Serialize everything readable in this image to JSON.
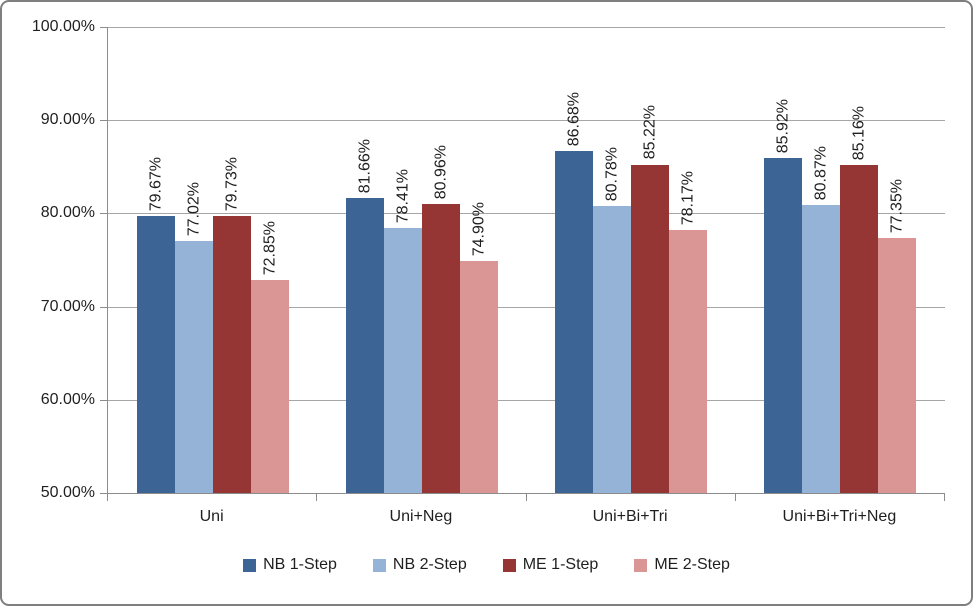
{
  "chart_data": {
    "type": "bar",
    "title": "",
    "xlabel": "",
    "ylabel": "",
    "categories": [
      "Uni",
      "Uni+Neg",
      "Uni+Bi+Tri",
      "Uni+Bi+Tri+Neg"
    ],
    "series": [
      {
        "name": "NB 1-Step",
        "color": "#3C6596",
        "values": [
          79.67,
          81.66,
          86.68,
          85.92
        ],
        "labels": [
          "79.67%",
          "81.66%",
          "86.68%",
          "85.92%"
        ]
      },
      {
        "name": "NB 2-Step",
        "color": "#95B3D7",
        "values": [
          77.02,
          78.41,
          80.78,
          80.87
        ],
        "labels": [
          "77.02%",
          "78.41%",
          "80.78%",
          "80.87%"
        ]
      },
      {
        "name": "ME 1-Step",
        "color": "#963634",
        "values": [
          79.73,
          80.96,
          85.22,
          85.16
        ],
        "labels": [
          "79.73%",
          "80.96%",
          "85.22%",
          "85.16%"
        ]
      },
      {
        "name": "ME 2-Step",
        "color": "#D99694",
        "values": [
          72.85,
          74.9,
          78.17,
          77.35
        ],
        "labels": [
          "72.85%",
          "74.90%",
          "78.17%",
          "77.35%"
        ]
      }
    ],
    "ylim": [
      50,
      100
    ],
    "yticks": [
      {
        "value": 50,
        "label": "50.00%"
      },
      {
        "value": 60,
        "label": "60.00%"
      },
      {
        "value": 70,
        "label": "70.00%"
      },
      {
        "value": 80,
        "label": "80.00%"
      },
      {
        "value": 90,
        "label": "90.00%"
      },
      {
        "value": 100,
        "label": "100.00%"
      }
    ],
    "grid": true,
    "legend_position": "bottom"
  },
  "colors": {
    "frame_border": "#7F7F7F",
    "axis": "#8C8C8C",
    "gridline": "#A6A6A6",
    "text": "#1F1F1F",
    "background": "#FFFFFF"
  }
}
